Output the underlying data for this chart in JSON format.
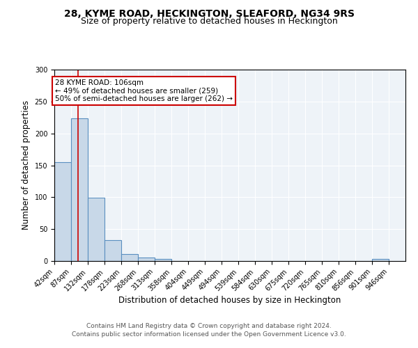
{
  "title": "28, KYME ROAD, HECKINGTON, SLEAFORD, NG34 9RS",
  "subtitle": "Size of property relative to detached houses in Heckington",
  "xlabel": "Distribution of detached houses by size in Heckington",
  "ylabel": "Number of detached properties",
  "bin_edges": [
    42,
    87,
    132,
    178,
    223,
    268,
    313,
    358,
    404,
    449,
    494,
    539,
    584,
    630,
    675,
    720,
    765,
    810,
    856,
    901,
    946
  ],
  "bar_heights": [
    155,
    224,
    99,
    33,
    11,
    6,
    3,
    0,
    0,
    0,
    0,
    0,
    0,
    0,
    0,
    0,
    0,
    0,
    0,
    3
  ],
  "bar_color": "#c8d8e8",
  "bar_edgecolor": "#5a8fc0",
  "bar_linewidth": 0.8,
  "vline_x": 106,
  "vline_color": "#cc0000",
  "vline_linewidth": 1.2,
  "annotation_text": "28 KYME ROAD: 106sqm\n← 49% of detached houses are smaller (259)\n50% of semi-detached houses are larger (262) →",
  "annotation_box_color": "white",
  "annotation_box_edgecolor": "#cc0000",
  "annotation_fontsize": 7.5,
  "ylim": [
    0,
    300
  ],
  "yticks": [
    0,
    50,
    100,
    150,
    200,
    250,
    300
  ],
  "background_color": "#eef3f8",
  "footer_line1": "Contains HM Land Registry data © Crown copyright and database right 2024.",
  "footer_line2": "Contains public sector information licensed under the Open Government Licence v3.0.",
  "title_fontsize": 10,
  "subtitle_fontsize": 9,
  "xlabel_fontsize": 8.5,
  "ylabel_fontsize": 8.5,
  "tick_fontsize": 7
}
